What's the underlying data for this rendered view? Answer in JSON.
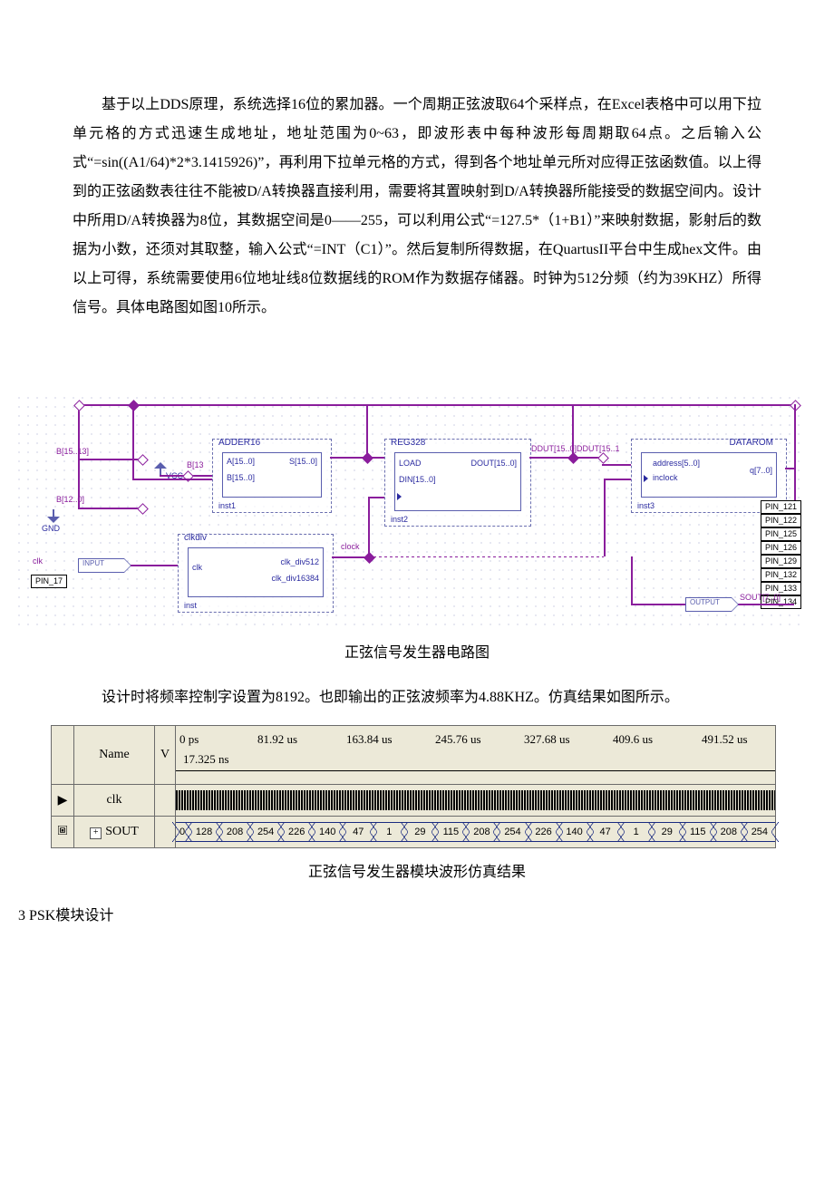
{
  "para1": "基于以上DDS原理，系统选择16位的累加器。一个周期正弦波取64个采样点，在Excel表格中可以用下拉单元格的方式迅速生成地址，地址范围为0~63，即波形表中每种波形每周期取64点。之后输入公式“=sin((A1/64)*2*3.1415926)”，再利用下拉单元格的方式，得到各个地址单元所对应得正弦函数值。以上得到的正弦函数表往往不能被D/A转换器直接利用，需要将其置映射到D/A转换器所能接受的数据空间内。设计中所用D/A转换器为8位，其数据空间是0——255，可以利用公式“=127.5*（1+B1）”来映射数据，影射后的数据为小数，还须对其取整，输入公式“=INT（C1）”。然后复制所得数据，在QuartusII平台中生成hex文件。由以上可得，系统需要使用6位地址线8位数据线的ROM作为数据存储器。时钟为512分频（约为39KHZ）所得信号。具体电路图如图10所示。",
  "fig1_caption": "正弦信号发生器电路图",
  "para2": "设计时将频率控制字设置为8192。也即输出的正弦波频率为4.88KHZ。仿真结果如图所示。",
  "fig2_caption": "正弦信号发生器模块波形仿真结果",
  "section3": "3 PSK模块设计",
  "circuit": {
    "wire_color": "#8a1d9c",
    "blocks": {
      "adder": {
        "title": "ADDER16",
        "pins_l": [
          "A[15..0]",
          "B[15..0]"
        ],
        "pins_r": [
          "S[15..0]"
        ],
        "inst": "inst1"
      },
      "reg": {
        "title": "REG328",
        "pins_l": [
          "LOAD",
          "DIN[15..0]"
        ],
        "pins_r": [
          "DOUT[15..0]"
        ],
        "inst": "inst2"
      },
      "rom": {
        "title": "DATAROM",
        "pins_l": [
          "address[5..0]",
          "inclock"
        ],
        "pins_r": [
          "q[7..0]"
        ],
        "inst": "inst3"
      },
      "clkdiv": {
        "title": "clkdiv",
        "pins_l": [
          "clk"
        ],
        "pins_r": [
          "clk_div512",
          "clk_div16384"
        ],
        "inst": "inst"
      }
    },
    "labels": {
      "b_hi": "B[15..13]",
      "b_lo": "B[12..0]",
      "b13": "B[13",
      "vcc": "VCC",
      "gnd": "GND",
      "ddut0": "DDUT[15..0]",
      "ddut1": "DDUT[15..1",
      "clock": "clock",
      "clk": "clk",
      "input": "INPUT",
      "output": "OUTPUT",
      "sout": "SOUT[7..0]"
    },
    "pin_in": "PIN_17",
    "pins_out": [
      "PIN_121",
      "PIN_122",
      "PIN_125",
      "PIN_126",
      "PIN_129",
      "PIN_132",
      "PIN_133",
      "PIN_134"
    ]
  },
  "wave": {
    "header_name": "Name",
    "header_val": "V",
    "ruler_start": "0 ps",
    "ruler_sub": "17.325 ns",
    "ticks": [
      "81.92 us",
      "163.84 us",
      "245.76 us",
      "327.68 us",
      "409.6 us",
      "491.52 us"
    ],
    "rows": {
      "clk": {
        "name": "clk",
        "icon": "▶"
      },
      "sout": {
        "name": "SOUT",
        "icon": "🞖",
        "expand": "+",
        "values": [
          "0",
          "128",
          "208",
          "254",
          "226",
          "140",
          "47",
          "1",
          "29",
          "115",
          "208",
          "254",
          "226",
          "140",
          "47",
          "1",
          "29",
          "115",
          "208",
          "254"
        ]
      }
    }
  }
}
